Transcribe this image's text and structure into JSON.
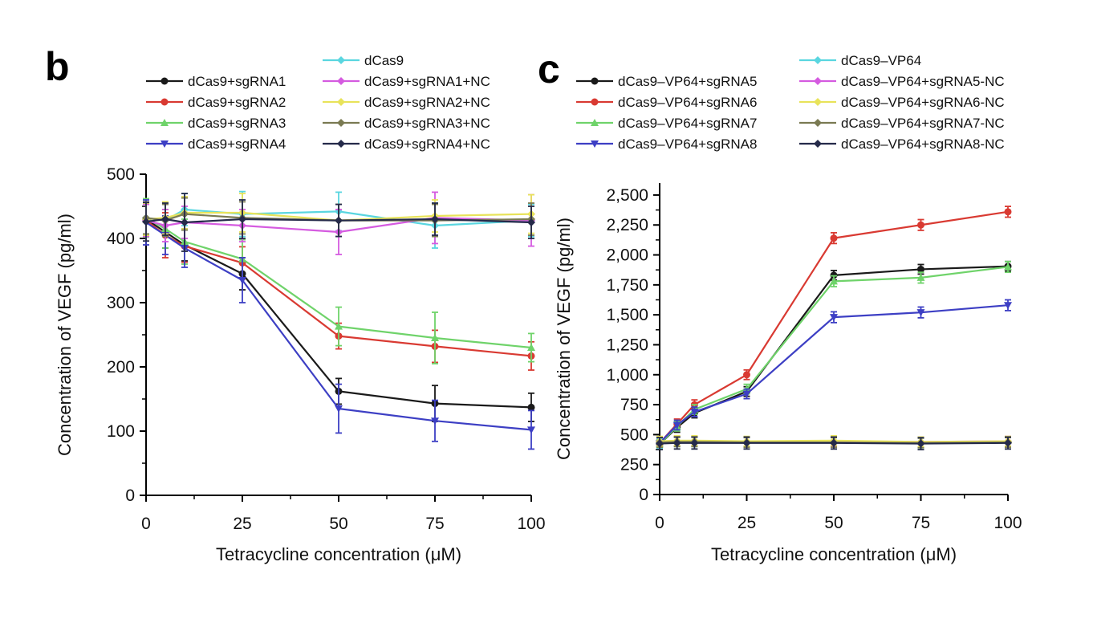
{
  "chart_data": [
    {
      "panel": "b",
      "type": "line",
      "xlabel": "Tetracycline concentration (μM)",
      "ylabel": "Concentration of VEGF (pg/ml)",
      "xlim": [
        0,
        100
      ],
      "ylim": [
        0,
        500
      ],
      "x_ticks": [
        0,
        25,
        50,
        75,
        100
      ],
      "x_tick_labels": [
        "0",
        "25",
        "50",
        "75",
        "100"
      ],
      "y_ticks": [
        0,
        100,
        200,
        300,
        400,
        500
      ],
      "y_tick_labels": [
        "0",
        "100",
        "200",
        "300",
        "400",
        "500"
      ],
      "x": [
        0,
        5,
        10,
        25,
        50,
        75,
        100
      ],
      "legend_placement": "top",
      "series": [
        {
          "name": "dCas9+sgRNA1",
          "color": "#1a1a1a",
          "marker": "circle",
          "values": [
            430,
            410,
            390,
            345,
            162,
            143,
            137
          ],
          "errors": [
            25,
            25,
            25,
            25,
            20,
            28,
            22
          ]
        },
        {
          "name": "dCas9+sgRNA2",
          "color": "#d93a32",
          "marker": "circle",
          "values": [
            428,
            405,
            388,
            362,
            248,
            232,
            217
          ],
          "errors": [
            25,
            35,
            25,
            25,
            20,
            25,
            22
          ]
        },
        {
          "name": "dCas9+sgRNA3",
          "color": "#6fd36a",
          "marker": "triangle-up",
          "values": [
            432,
            415,
            395,
            368,
            263,
            245,
            230
          ],
          "errors": [
            30,
            30,
            35,
            30,
            30,
            40,
            22
          ]
        },
        {
          "name": "dCas9+sgRNA4",
          "color": "#3d3fc4",
          "marker": "triangle-down",
          "values": [
            425,
            405,
            385,
            335,
            135,
            116,
            102
          ],
          "errors": [
            35,
            30,
            30,
            35,
            38,
            32,
            30
          ]
        },
        {
          "name": "dCas9",
          "color": "#5ad6e0",
          "marker": "diamond",
          "values": [
            432,
            428,
            445,
            438,
            442,
            420,
            428
          ],
          "errors": [
            25,
            25,
            25,
            35,
            30,
            35,
            25
          ]
        },
        {
          "name": "dCas9+sgRNA1+NC",
          "color": "#d55be0",
          "marker": "diamond",
          "values": [
            428,
            420,
            425,
            420,
            410,
            432,
            428
          ],
          "errors": [
            25,
            25,
            25,
            25,
            35,
            40,
            40
          ]
        },
        {
          "name": "dCas9+sgRNA2+NC",
          "color": "#e8e35a",
          "marker": "diamond",
          "values": [
            430,
            432,
            440,
            440,
            428,
            435,
            438
          ],
          "errors": [
            25,
            25,
            25,
            30,
            25,
            25,
            30
          ]
        },
        {
          "name": "dCas9+sgRNA3+NC",
          "color": "#7a7a52",
          "marker": "diamond",
          "values": [
            432,
            428,
            438,
            432,
            428,
            428,
            430
          ],
          "errors": [
            25,
            25,
            25,
            25,
            25,
            25,
            25
          ]
        },
        {
          "name": "dCas9+sgRNA4+NC",
          "color": "#252a4a",
          "marker": "diamond",
          "values": [
            426,
            430,
            425,
            430,
            428,
            430,
            425
          ],
          "errors": [
            30,
            25,
            45,
            30,
            25,
            25,
            25
          ]
        }
      ]
    },
    {
      "panel": "c",
      "type": "line",
      "xlabel": "Tetracycline concentration (μM)",
      "ylabel": "Concentration of VEGF (pg/ml)",
      "xlim": [
        0,
        100
      ],
      "ylim": [
        0,
        2600
      ],
      "x_ticks": [
        0,
        25,
        50,
        75,
        100
      ],
      "x_tick_labels": [
        "0",
        "25",
        "50",
        "75",
        "100"
      ],
      "y_ticks": [
        0,
        250,
        500,
        750,
        1000,
        1250,
        1500,
        1750,
        2000,
        2250,
        2500
      ],
      "y_tick_labels": [
        "0",
        "250",
        "500",
        "750",
        "1,000",
        "1,250",
        "1,500",
        "1,750",
        "2,000",
        "2,250",
        "2,500"
      ],
      "x": [
        0,
        5,
        10,
        25,
        50,
        75,
        100
      ],
      "legend_placement": "top",
      "series": [
        {
          "name": "dCas9–VP64+sgRNA5",
          "color": "#1a1a1a",
          "marker": "circle",
          "values": [
            420,
            560,
            680,
            860,
            1830,
            1880,
            1905
          ],
          "errors": [
            40,
            40,
            40,
            40,
            40,
            40,
            40
          ]
        },
        {
          "name": "dCas9–VP64+sgRNA6",
          "color": "#d93a32",
          "marker": "circle",
          "values": [
            430,
            590,
            750,
            1000,
            2140,
            2250,
            2360
          ],
          "errors": [
            40,
            40,
            40,
            40,
            45,
            45,
            45
          ]
        },
        {
          "name": "dCas9–VP64+sgRNA7",
          "color": "#6fd36a",
          "marker": "triangle-up",
          "values": [
            420,
            570,
            710,
            880,
            1780,
            1810,
            1900
          ],
          "errors": [
            40,
            40,
            40,
            40,
            45,
            45,
            45
          ]
        },
        {
          "name": "dCas9–VP64+sgRNA8",
          "color": "#3d3fc4",
          "marker": "triangle-down",
          "values": [
            430,
            580,
            690,
            840,
            1480,
            1520,
            1580
          ],
          "errors": [
            40,
            40,
            40,
            40,
            45,
            45,
            45
          ]
        },
        {
          "name": "dCas9–VP64",
          "color": "#5ad6e0",
          "marker": "diamond",
          "values": [
            430,
            440,
            440,
            435,
            440,
            430,
            440
          ],
          "errors": [
            40,
            40,
            40,
            40,
            40,
            40,
            40
          ]
        },
        {
          "name": "dCas9–VP64+sgRNA5-NC",
          "color": "#d55be0",
          "marker": "diamond",
          "values": [
            440,
            445,
            445,
            440,
            445,
            440,
            445
          ],
          "errors": [
            40,
            40,
            40,
            40,
            40,
            40,
            40
          ]
        },
        {
          "name": "dCas9–VP64+sgRNA6-NC",
          "color": "#e8e35a",
          "marker": "diamond",
          "values": [
            445,
            450,
            450,
            445,
            450,
            440,
            445
          ],
          "errors": [
            40,
            40,
            40,
            40,
            40,
            40,
            40
          ]
        },
        {
          "name": "dCas9–VP64+sgRNA7-NC",
          "color": "#7a7a52",
          "marker": "diamond",
          "values": [
            435,
            440,
            440,
            435,
            435,
            430,
            435
          ],
          "errors": [
            40,
            40,
            40,
            40,
            40,
            40,
            40
          ]
        },
        {
          "name": "dCas9–VP64+sgRNA8-NC",
          "color": "#252a4a",
          "marker": "diamond",
          "values": [
            425,
            430,
            430,
            430,
            430,
            425,
            430
          ],
          "errors": [
            50,
            50,
            50,
            50,
            50,
            50,
            50
          ]
        }
      ]
    }
  ]
}
